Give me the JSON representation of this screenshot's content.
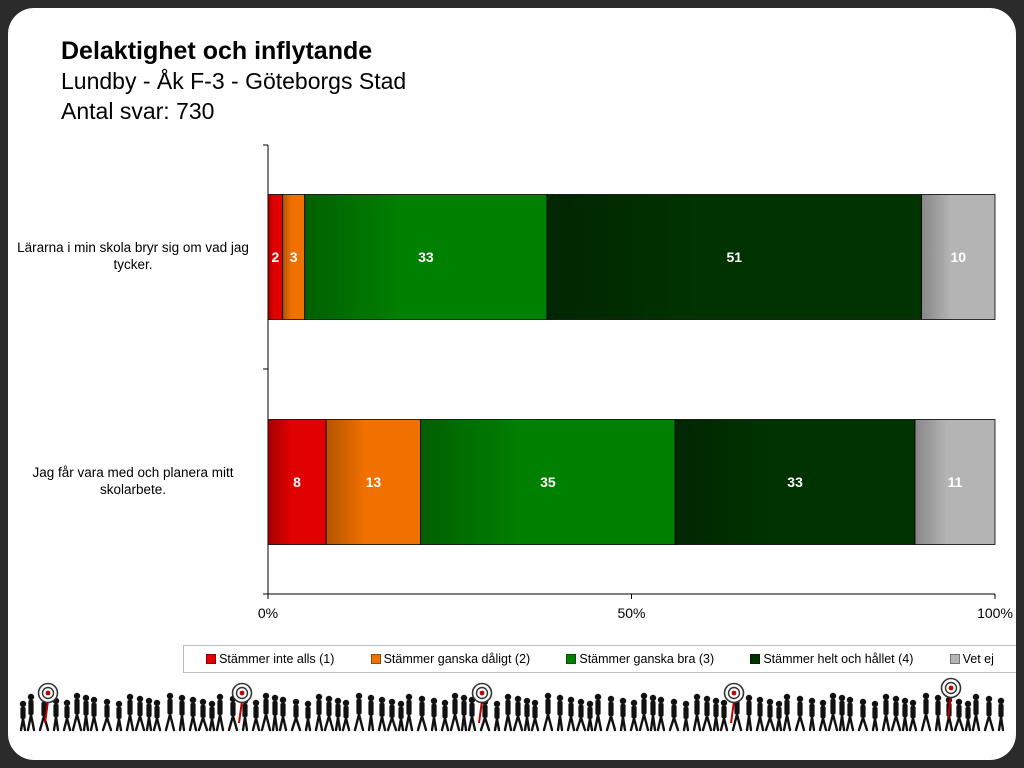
{
  "header": {
    "title": "Delaktighet och inflytande",
    "subtitle": "Lundby - Åk F-3 - Göteborgs Stad",
    "responses": "Antal svar: 730"
  },
  "colors": {
    "stammer_inte_alls": "#e00000",
    "stammer_ganska_daligt": "#f07000",
    "stammer_ganska_bra": "#008000",
    "stammer_helt_och_hallet": "#003300",
    "vet_ej": "#b4b4b4"
  },
  "chart_data": {
    "type": "bar",
    "orientation": "horizontal",
    "stacked": "percent",
    "categories": [
      "Lärarna i min skola bryr sig om vad jag tycker.",
      "Jag får vara med och planera mitt skolarbete."
    ],
    "series": [
      {
        "name": "Stämmer inte alls (1)",
        "values": [
          2,
          8
        ],
        "color": "#e00000"
      },
      {
        "name": "Stämmer ganska dåligt (2)",
        "values": [
          3,
          13
        ],
        "color": "#f07000"
      },
      {
        "name": "Stämmer ganska bra (3)",
        "values": [
          33,
          35
        ],
        "color": "#008000"
      },
      {
        "name": "Stämmer helt och hållet (4)",
        "values": [
          51,
          33
        ],
        "color": "#003300"
      },
      {
        "name": "Vet ej",
        "values": [
          10,
          11
        ],
        "color": "#b4b4b4"
      }
    ],
    "x_ticks": [
      "0%",
      "50%",
      "100%"
    ],
    "xlim": [
      0,
      100
    ],
    "legend_position": "bottom",
    "data_labels": true
  }
}
